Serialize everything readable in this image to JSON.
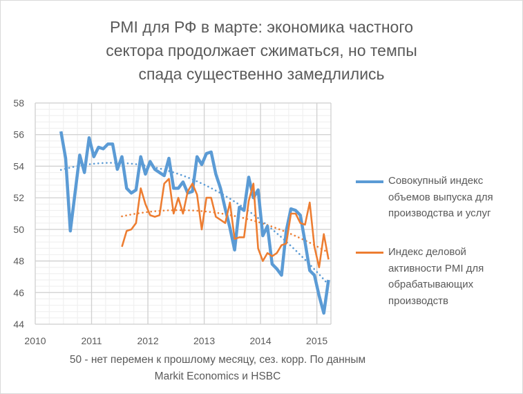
{
  "title_lines": [
    "PMI для РФ в марте: экономика частного",
    "сектора продолжает сжиматься, но темпы",
    "спада существенно замедлились"
  ],
  "footer_lines": [
    "50 - нет перемен к прошлому месяцу, сез. корр. По данным",
    "Markit Economics и HSBC"
  ],
  "legend": {
    "composite": [
      "Совокупный индекс",
      "объемов выпуска для",
      "производства и услуг"
    ],
    "manufacturing": [
      "Индекс деловой",
      "активности PMI для",
      "обрабатывающих",
      "производств"
    ]
  },
  "colors": {
    "composite": "#5b9bd5",
    "manufacturing": "#ed7d31"
  },
  "chart_data": {
    "type": "line",
    "title": "PMI для РФ в марте: экономика частного сектора продолжает сжиматься, но темпы спада существенно замедлились",
    "xlabel": "",
    "ylabel": "",
    "x_ticks": [
      "2010",
      "2011",
      "2012",
      "2013",
      "2014",
      "2015"
    ],
    "y_ticks": [
      "44",
      "46",
      "48",
      "50",
      "52",
      "54",
      "56",
      "58"
    ],
    "xlim": [
      2010,
      2015.25
    ],
    "ylim": [
      44,
      58
    ],
    "grid": true,
    "legend_position": "right",
    "series": [
      {
        "name": "Совокупный индекс объемов выпуска для производства и услуг",
        "start": "2010-06",
        "trendline": "polynomial-2",
        "values": [
          56.2,
          54.5,
          49.9,
          52.3,
          54.7,
          53.6,
          55.8,
          54.6,
          55.2,
          55.1,
          55.4,
          55.4,
          53.8,
          54.6,
          52.6,
          52.3,
          52.5,
          54.6,
          53.5,
          54.3,
          53.8,
          53.6,
          53.4,
          54.5,
          52.6,
          52.6,
          53.0,
          52.3,
          52.4,
          54.6,
          54.1,
          54.8,
          54.9,
          53.5,
          52.6,
          51.3,
          50.1,
          48.7,
          51.4,
          51.2,
          53.3,
          52.0,
          52.5,
          49.6,
          50.2,
          47.8,
          47.5,
          47.1,
          49.9,
          51.3,
          51.2,
          50.9,
          49.2,
          47.4,
          47.1,
          45.8,
          44.7,
          46.8
        ]
      },
      {
        "name": "Индекс деловой активности PMI для обрабатывающих производств",
        "start": "2011-07",
        "trendline": "polynomial-2",
        "values": [
          48.9,
          49.9,
          50.0,
          50.4,
          52.6,
          51.6,
          50.9,
          50.8,
          50.9,
          52.9,
          53.2,
          51.0,
          52.0,
          51.0,
          52.4,
          52.9,
          52.2,
          50.0,
          52.0,
          52.0,
          50.8,
          50.6,
          50.4,
          51.7,
          49.4,
          49.5,
          49.5,
          51.8,
          52.9,
          48.8,
          48.0,
          48.5,
          48.3,
          48.5,
          49.0,
          49.1,
          51.0,
          51.0,
          50.4,
          50.3,
          51.7,
          48.9,
          47.6,
          49.7,
          48.1
        ]
      }
    ]
  }
}
